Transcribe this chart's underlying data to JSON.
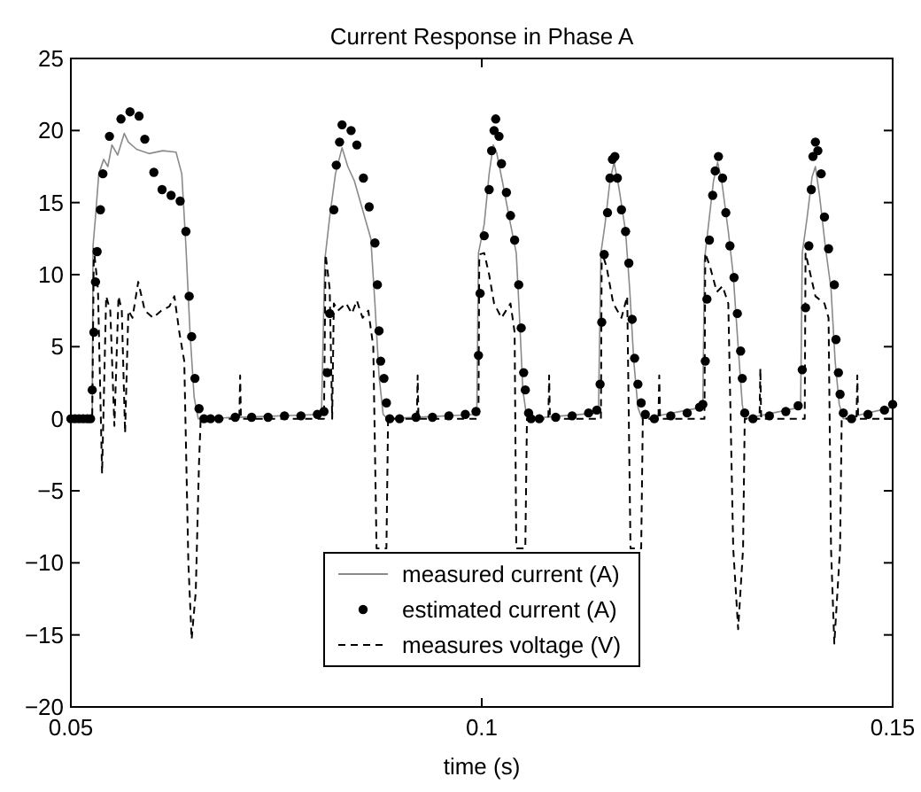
{
  "chart_data": {
    "type": "line",
    "title": "Current Response in Phase A",
    "xlabel": "time (s)",
    "xlim": [
      0.05,
      0.15
    ],
    "xticks": [
      0.05,
      0.1,
      0.15
    ],
    "ylim": [
      -20,
      25
    ],
    "yticks": [
      -20,
      -15,
      -10,
      -5,
      0,
      5,
      10,
      15,
      20,
      25
    ],
    "grid": false,
    "legend": "bottom",
    "series": [
      {
        "name": "measured current (A)",
        "color": "#8a8a8a",
        "line_style": "solid",
        "x": [
          0.05,
          0.0526,
          0.0527,
          0.053,
          0.0534,
          0.054,
          0.0545,
          0.055,
          0.0557,
          0.0565,
          0.057,
          0.058,
          0.0595,
          0.0612,
          0.0628,
          0.0635,
          0.064,
          0.0645,
          0.065,
          0.0655,
          0.0805,
          0.0809,
          0.0815,
          0.0822,
          0.083,
          0.0837,
          0.0845,
          0.0855,
          0.0865,
          0.087,
          0.0875,
          0.088,
          0.0885,
          0.0994,
          0.0996,
          0.1003,
          0.1009,
          0.1014,
          0.1018,
          0.1025,
          0.1035,
          0.1042,
          0.1046,
          0.105,
          0.1055,
          0.1142,
          0.1145,
          0.115,
          0.1156,
          0.1161,
          0.1167,
          0.1175,
          0.118,
          0.1185,
          0.119,
          0.1195,
          0.1269,
          0.1271,
          0.1276,
          0.1282,
          0.1287,
          0.1292,
          0.13,
          0.1306,
          0.1312,
          0.1317,
          0.132,
          0.1388,
          0.139,
          0.1396,
          0.1402,
          0.1406,
          0.1411,
          0.1418,
          0.1425,
          0.143,
          0.1435,
          0.144,
          0.15
        ],
        "values": [
          0,
          0,
          12,
          14,
          17,
          18,
          17.5,
          19,
          18.3,
          19.8,
          19.2,
          18.7,
          18.4,
          18.6,
          18.5,
          17,
          12,
          6,
          1.5,
          0,
          0.3,
          11,
          14,
          17,
          18.8,
          17.5,
          16.5,
          14.5,
          12.5,
          8,
          3,
          0.3,
          0,
          0.3,
          11.5,
          13.5,
          17,
          19,
          18.5,
          16.5,
          13.5,
          11.5,
          7,
          2,
          0,
          0.4,
          11.5,
          13.5,
          16.5,
          17.8,
          16,
          13,
          9,
          4,
          0.8,
          0,
          0.8,
          11,
          13.5,
          16.5,
          17.8,
          16.5,
          13,
          10,
          5,
          1,
          0,
          0.8,
          11.5,
          14,
          16.8,
          17.5,
          15.5,
          12,
          9,
          4,
          1,
          0,
          0.8
        ]
      },
      {
        "name": "estimated current (A)",
        "type": "scatter",
        "marker": "circle",
        "color": "#000000",
        "x": [
          0.05,
          0.0505,
          0.051,
          0.0515,
          0.052,
          0.0524,
          0.0526,
          0.0528,
          0.053,
          0.0532,
          0.0536,
          0.0539,
          0.0547,
          0.0561,
          0.0572,
          0.0583,
          0.059,
          0.0601,
          0.0611,
          0.0622,
          0.0633,
          0.064,
          0.0644,
          0.0647,
          0.0651,
          0.0656,
          0.0662,
          0.067,
          0.068,
          0.07,
          0.072,
          0.074,
          0.076,
          0.078,
          0.08,
          0.0808,
          0.0812,
          0.0815,
          0.082,
          0.0823,
          0.0827,
          0.083,
          0.0841,
          0.0848,
          0.0856,
          0.0863,
          0.087,
          0.0873,
          0.0875,
          0.0877,
          0.0881,
          0.0884,
          0.0888,
          0.09,
          0.092,
          0.094,
          0.096,
          0.098,
          0.0993,
          0.0996,
          0.0998,
          0.1003,
          0.1009,
          0.1012,
          0.1015,
          0.1017,
          0.1021,
          0.1024,
          0.103,
          0.1035,
          0.104,
          0.1045,
          0.1048,
          0.1051,
          0.1053,
          0.1057,
          0.106,
          0.107,
          0.109,
          0.111,
          0.113,
          0.114,
          0.1144,
          0.1146,
          0.1149,
          0.1153,
          0.1156,
          0.1159,
          0.1162,
          0.1165,
          0.117,
          0.1175,
          0.1179,
          0.1183,
          0.1186,
          0.119,
          0.1194,
          0.1199,
          0.121,
          0.123,
          0.125,
          0.1265,
          0.1269,
          0.1272,
          0.1274,
          0.1277,
          0.1281,
          0.1284,
          0.1288,
          0.1293,
          0.1297,
          0.1302,
          0.1307,
          0.1311,
          0.1315,
          0.1317,
          0.132,
          0.133,
          0.135,
          0.137,
          0.1385,
          0.139,
          0.1394,
          0.1398,
          0.1401,
          0.1403,
          0.1406,
          0.1409,
          0.1413,
          0.1417,
          0.1422,
          0.1429,
          0.1431,
          0.1434,
          0.1436,
          0.144,
          0.145,
          0.147,
          0.149,
          0.15
        ],
        "values": [
          0,
          0,
          0,
          0,
          0,
          0,
          2,
          6,
          9.5,
          11.6,
          14.5,
          17,
          19.6,
          20.8,
          21.3,
          21,
          19.4,
          17.1,
          15.9,
          15.5,
          15.1,
          13,
          8.5,
          5.7,
          2.8,
          0.7,
          0,
          0,
          0,
          0.1,
          0.1,
          0.1,
          0.2,
          0.2,
          0.3,
          0.5,
          3.2,
          7.3,
          14.5,
          17.6,
          19.2,
          20.4,
          20,
          19,
          16.7,
          14.7,
          12.2,
          9.3,
          6.1,
          4,
          2.8,
          1.1,
          0,
          0,
          0.1,
          0.1,
          0.2,
          0.3,
          0.5,
          4.4,
          8.7,
          12.7,
          15.9,
          18.6,
          20,
          20.8,
          19.6,
          17.7,
          15.7,
          14.1,
          12.4,
          9.3,
          6.3,
          3.2,
          2,
          0.4,
          0,
          0,
          0.1,
          0.2,
          0.4,
          0.6,
          2.4,
          6.7,
          11.4,
          14.3,
          16.7,
          18,
          18.2,
          16.7,
          14.5,
          13,
          10.8,
          6.9,
          4.2,
          2.4,
          1.1,
          0.3,
          0,
          0.2,
          0.4,
          0.8,
          1,
          4,
          8.3,
          12.4,
          15.5,
          17.2,
          18.2,
          16.7,
          14.3,
          12,
          9.8,
          7.3,
          4.7,
          2.8,
          0.4,
          0,
          0.2,
          0.5,
          0.9,
          3.4,
          7.7,
          12,
          15.9,
          18.2,
          19.2,
          18.6,
          17,
          14,
          11.8,
          9.3,
          5.5,
          3.2,
          1.7,
          0.4,
          0,
          0.3,
          0.6,
          1
        ]
      },
      {
        "name": "measures voltage (V)",
        "color": "#000000",
        "line_style": "dashed",
        "x": [
          0.05,
          0.0526,
          0.0528,
          0.0533,
          0.0538,
          0.0543,
          0.0548,
          0.0553,
          0.0558,
          0.0562,
          0.0566,
          0.057,
          0.0575,
          0.0582,
          0.059,
          0.06,
          0.061,
          0.062,
          0.0626,
          0.0632,
          0.0638,
          0.0643,
          0.0647,
          0.0652,
          0.0656,
          0.0658,
          0.0705,
          0.0706,
          0.0707,
          0.0808,
          0.081,
          0.0815,
          0.0818,
          0.082,
          0.0825,
          0.0835,
          0.0842,
          0.0848,
          0.0855,
          0.0862,
          0.0868,
          0.0872,
          0.0884,
          0.0886,
          0.0921,
          0.0922,
          0.0923,
          0.0996,
          0.0997,
          0.1003,
          0.1009,
          0.1015,
          0.1024,
          0.1035,
          0.104,
          0.1042,
          0.1053,
          0.1055,
          0.1081,
          0.1082,
          0.1083,
          0.1145,
          0.1146,
          0.1152,
          0.116,
          0.117,
          0.1177,
          0.1181,
          0.1194,
          0.1196,
          0.1215,
          0.1216,
          0.1217,
          0.1271,
          0.1272,
          0.1278,
          0.1286,
          0.1293,
          0.13,
          0.1306,
          0.1312,
          0.1318,
          0.132,
          0.1338,
          0.1339,
          0.134,
          0.1393,
          0.1394,
          0.14,
          0.1406,
          0.1417,
          0.1422,
          0.1425,
          0.1429,
          0.1436,
          0.1438,
          0.1456,
          0.1457,
          0.1458,
          0.15
        ],
        "values": [
          0,
          0,
          11.8,
          9,
          -3.8,
          8.5,
          7.5,
          -0.5,
          8.5,
          7.5,
          -1,
          7.5,
          7,
          9.5,
          7.5,
          7,
          7.5,
          7.8,
          8.5,
          6,
          4,
          -10,
          -15.3,
          -12,
          -3,
          0,
          0,
          3,
          0,
          0,
          11.4,
          9,
          0,
          8,
          7.5,
          8,
          7.3,
          8.2,
          7,
          7.5,
          5,
          -9,
          -9,
          0,
          0,
          3,
          0,
          0,
          11.4,
          11.5,
          10,
          8,
          7,
          8,
          6,
          -9,
          -9,
          0,
          0,
          3,
          0,
          0,
          11.6,
          10.5,
          8,
          7,
          8.5,
          -9,
          -9,
          0,
          0,
          3,
          0,
          0,
          11.5,
          10.5,
          8.8,
          9.2,
          8,
          -9,
          -14.6,
          -9,
          0,
          0,
          3.5,
          0,
          0,
          11.5,
          10,
          8.5,
          8,
          7,
          -9,
          -15.6,
          -9,
          0,
          0,
          3,
          0,
          0
        ]
      }
    ]
  }
}
